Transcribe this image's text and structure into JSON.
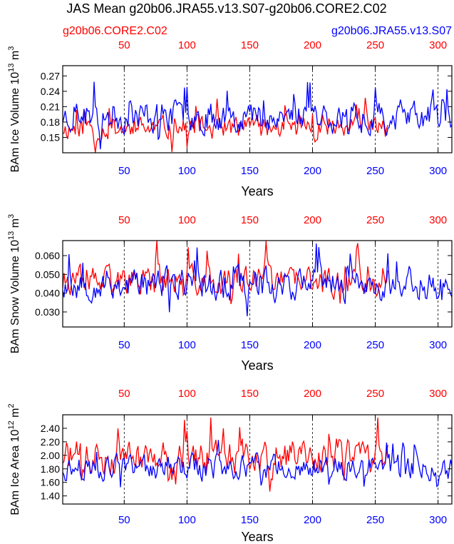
{
  "figure": {
    "title": "JAS Mean g20b06.JRA55.v13.S07-g20b06.CORE2.C02",
    "legend_left": "g20b06.CORE2.C02",
    "legend_right": "g20b06.JRA55.v13.S07"
  },
  "colors": {
    "red": "#ff0000",
    "blue": "#0000ff",
    "axis": "#000000"
  },
  "chart_data": [
    {
      "type": "line",
      "title": "",
      "xlabel": "Years",
      "ylabel": "BAm Ice Volume 10^13 m^3",
      "ylabel_parts": {
        "main": "BAm Ice Volume 10",
        "sup1": "13",
        "mid": " m",
        "sup2": "3"
      },
      "xlim": [
        1,
        311
      ],
      "ylim": [
        0.12,
        0.29
      ],
      "yticks": [
        0.15,
        0.18,
        0.21,
        0.24,
        0.27
      ],
      "ytick_labels": [
        "0.15",
        "0.18",
        "0.21",
        "0.24",
        "0.27"
      ],
      "xticks": [
        50,
        100,
        150,
        200,
        250,
        300
      ],
      "xtick_labels": [
        "50",
        "100",
        "150",
        "200",
        "250",
        "300"
      ],
      "series": [
        {
          "name": "g20b06.CORE2.C02",
          "color": "red",
          "length": 260,
          "base": 0.168,
          "amp": 0.022,
          "seed": 11,
          "x_axis": "top"
        },
        {
          "name": "g20b06.JRA55.v13.S07",
          "color": "blue",
          "length": 311,
          "base": 0.192,
          "amp": 0.03,
          "seed": 23,
          "x_axis": "bottom"
        }
      ]
    },
    {
      "type": "line",
      "title": "",
      "xlabel": "Years",
      "ylabel": "BAm Snow Volume 10^13 m^3",
      "ylabel_parts": {
        "main": "BAm Snow Volume 10",
        "sup1": "13",
        "mid": " m",
        "sup2": "3"
      },
      "xlim": [
        1,
        311
      ],
      "ylim": [
        0.022,
        0.068
      ],
      "yticks": [
        0.03,
        0.04,
        0.05,
        0.06
      ],
      "ytick_labels": [
        "0.030",
        "0.040",
        "0.050",
        "0.060"
      ],
      "xticks": [
        50,
        100,
        150,
        200,
        250,
        300
      ],
      "xtick_labels": [
        "50",
        "100",
        "150",
        "200",
        "250",
        "300"
      ],
      "series": [
        {
          "name": "g20b06.CORE2.C02",
          "color": "red",
          "length": 260,
          "base": 0.046,
          "amp": 0.0075,
          "seed": 37,
          "x_axis": "top"
        },
        {
          "name": "g20b06.JRA55.v13.S07",
          "color": "blue",
          "length": 311,
          "base": 0.045,
          "amp": 0.0085,
          "seed": 53,
          "x_axis": "bottom"
        }
      ]
    },
    {
      "type": "line",
      "title": "",
      "xlabel": "Years",
      "ylabel": "BAm Ice Area 10^12 m^2",
      "ylabel_parts": {
        "main": "BAm Ice Area 10",
        "sup1": "12",
        "mid": " m",
        "sup2": "2"
      },
      "xlim": [
        1,
        311
      ],
      "ylim": [
        1.28,
        2.6
      ],
      "yticks": [
        1.4,
        1.6,
        1.8,
        2.0,
        2.2,
        2.4
      ],
      "ytick_labels": [
        "1.40",
        "1.60",
        "1.80",
        "2.00",
        "2.20",
        "2.40"
      ],
      "xticks": [
        50,
        100,
        150,
        200,
        250,
        300
      ],
      "xtick_labels": [
        "50",
        "100",
        "150",
        "200",
        "250",
        "300"
      ],
      "series": [
        {
          "name": "g20b06.CORE2.C02",
          "color": "red",
          "length": 260,
          "base": 1.98,
          "amp": 0.24,
          "seed": 71,
          "x_axis": "top"
        },
        {
          "name": "g20b06.JRA55.v13.S07",
          "color": "blue",
          "length": 311,
          "base": 1.82,
          "amp": 0.18,
          "seed": 97,
          "x_axis": "bottom"
        }
      ]
    }
  ]
}
